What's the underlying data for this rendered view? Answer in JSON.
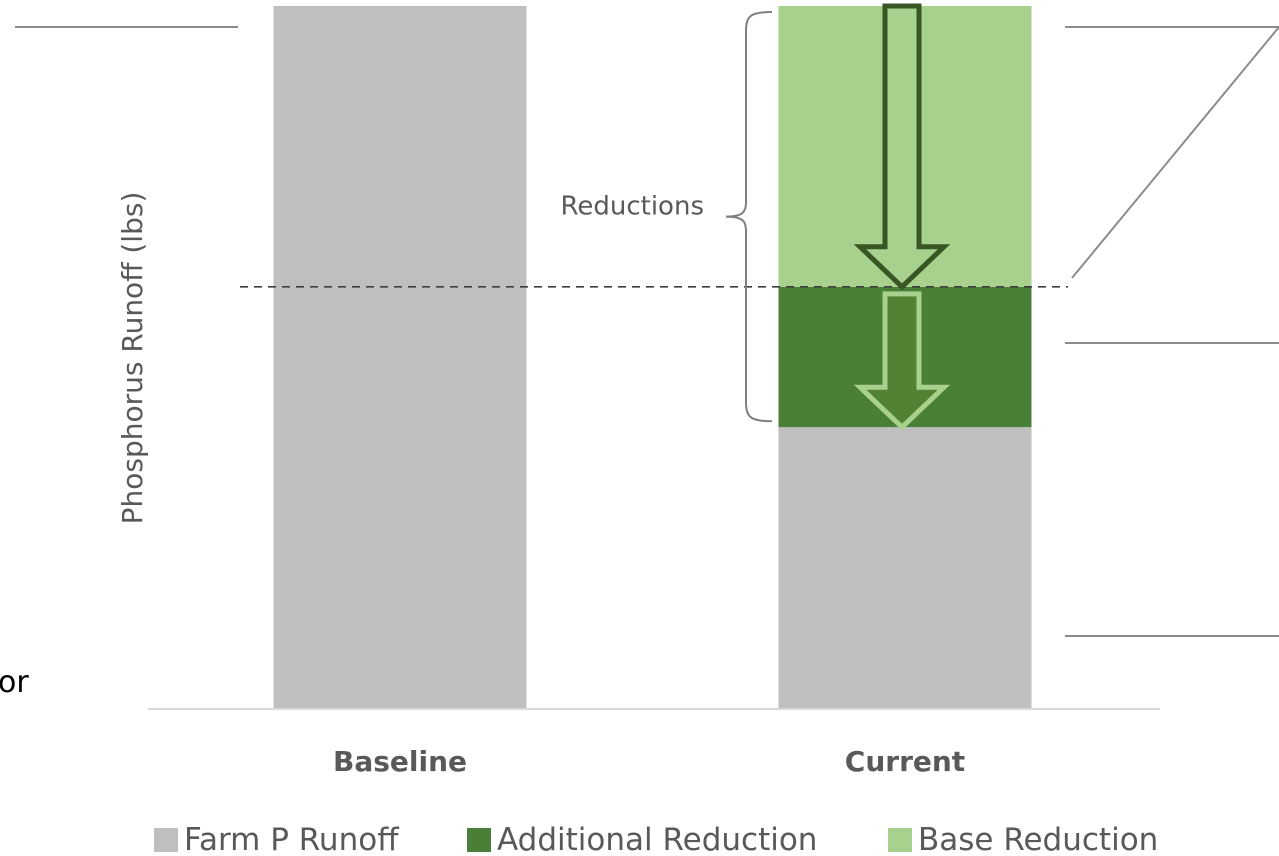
{
  "chart_data": {
    "type": "bar",
    "stacked": true,
    "categories": [
      "Baseline",
      "Current"
    ],
    "ylabel": "Phosphorus Runoff (lbs)",
    "ylim": [
      0,
      100
    ],
    "y_ticks_shown": false,
    "grid": false,
    "legend_position": "bottom",
    "series": [
      {
        "name": "Farm P Runoff",
        "color": "#bfbfbf",
        "values": [
          100,
          40
        ]
      },
      {
        "name": "Additional Reduction",
        "color": "#4a7f37",
        "values": [
          0,
          20
        ]
      },
      {
        "name": "Base Reduction",
        "color": "#a9d18e",
        "values": [
          0,
          40
        ]
      }
    ],
    "reference_line": {
      "value": 60,
      "style": "dashed"
    },
    "annotations": [
      {
        "text": "Reductions",
        "type": "brace",
        "category": "Current",
        "from": 40,
        "to": 100
      }
    ],
    "arrows": [
      {
        "category": "Current",
        "from": 100,
        "to": 60,
        "fill": "#a9d18e",
        "stroke": "#375623"
      },
      {
        "category": "Current",
        "from": 59,
        "to": 40,
        "fill": "#548235",
        "stroke": "#a9d18e"
      }
    ]
  },
  "margin_text": {
    "left_cut_text": "or"
  }
}
